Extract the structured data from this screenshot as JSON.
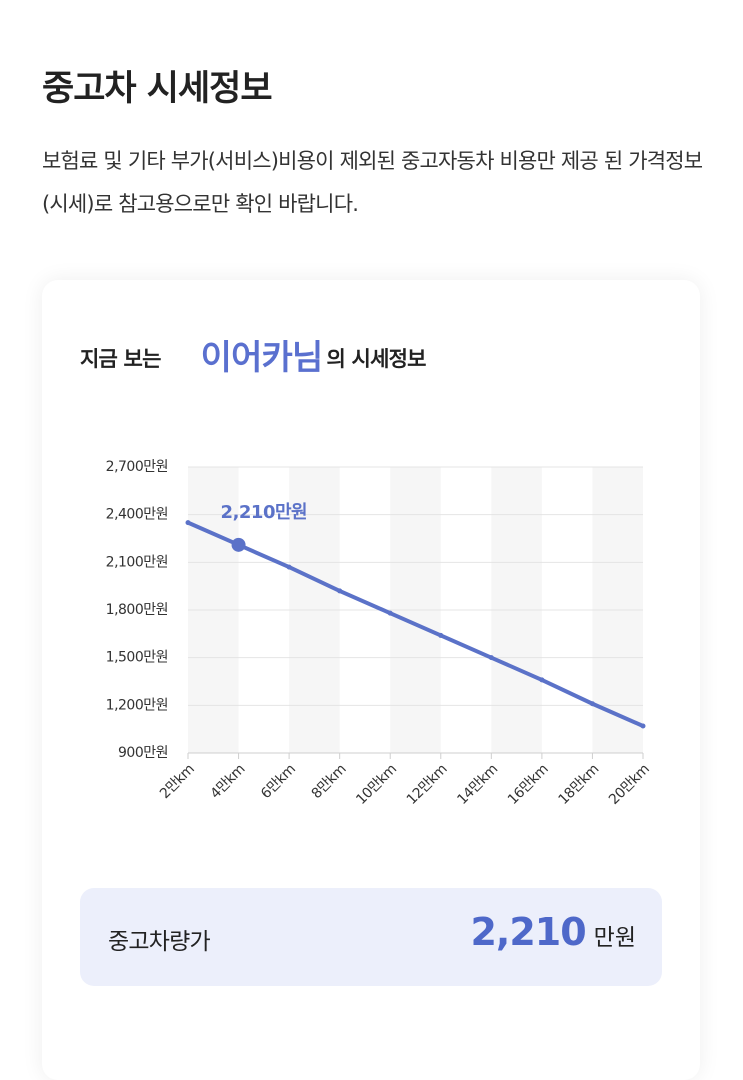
{
  "header": {
    "title": "중고차 시세정보",
    "description": "보험료 및 기타 부가(서비스)비용이 제외된 중고자동차 비용만 제공 된 가격정보(시세)로 참고용으로만 확인 바랍니다."
  },
  "card": {
    "heading_prefix": "지금 보는",
    "car_name": "이어카님",
    "heading_suffix": "의 시세정보"
  },
  "chart_data": {
    "type": "line",
    "categories": [
      "2만km",
      "4만km",
      "6만km",
      "8만km",
      "10만km",
      "12만km",
      "14만km",
      "16만km",
      "18만km",
      "20만km"
    ],
    "values": [
      2350,
      2210,
      2070,
      1920,
      1780,
      1640,
      1500,
      1360,
      1210,
      1070
    ],
    "value_labels": [
      null,
      "2,210만원",
      null,
      null,
      null,
      null,
      null,
      null,
      null,
      null
    ],
    "color": "#5b72c8",
    "ylim": [
      900,
      2700
    ],
    "yticks": [
      {
        "value": 900,
        "label": "900만원"
      },
      {
        "value": 1200,
        "label": "1,200만원"
      },
      {
        "value": 1500,
        "label": "1,500만원"
      },
      {
        "value": 1800,
        "label": "1,800만원"
      },
      {
        "value": 2100,
        "label": "2,100만원"
      },
      {
        "value": 2400,
        "label": "2,400만원"
      },
      {
        "value": 2700,
        "label": "2,700만원"
      }
    ],
    "grid": true
  },
  "summary": {
    "label": "중고차량가",
    "value": "2,210",
    "unit": "만원"
  }
}
